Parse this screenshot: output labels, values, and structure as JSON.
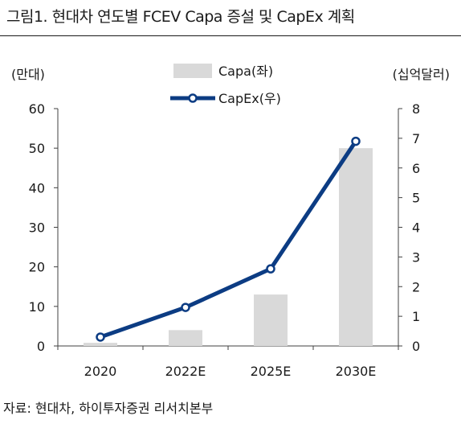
{
  "header": {
    "title": "그림1. 현대차 연도별 FCEV Capa 증설 및 CapEx 계획"
  },
  "footer": {
    "source": "자료: 현대차, 하이투자증권 리서치본부"
  },
  "chart_data": {
    "type": "bar",
    "categories": [
      "2020",
      "2022E",
      "2025E",
      "2030E"
    ],
    "series": [
      {
        "name": "Capa(좌)",
        "kind": "bar",
        "axis": "left",
        "color": "#d9d9d9",
        "values": [
          0.8,
          4,
          13,
          50
        ]
      },
      {
        "name": "CapEx(우)",
        "kind": "line",
        "axis": "right",
        "color": "#0c3c83",
        "values": [
          0.3,
          1.3,
          2.6,
          6.9
        ]
      }
    ],
    "y_left": {
      "unit_label": "(만대)",
      "ylim": [
        0,
        60
      ],
      "ticks": [
        0,
        10,
        20,
        30,
        40,
        50,
        60
      ]
    },
    "y_right": {
      "unit_label": "(십억달러)",
      "ylim": [
        0,
        8
      ],
      "ticks": [
        0,
        1,
        2,
        3,
        4,
        5,
        6,
        7,
        8
      ]
    },
    "legend_position": "top-center",
    "grid": false
  }
}
